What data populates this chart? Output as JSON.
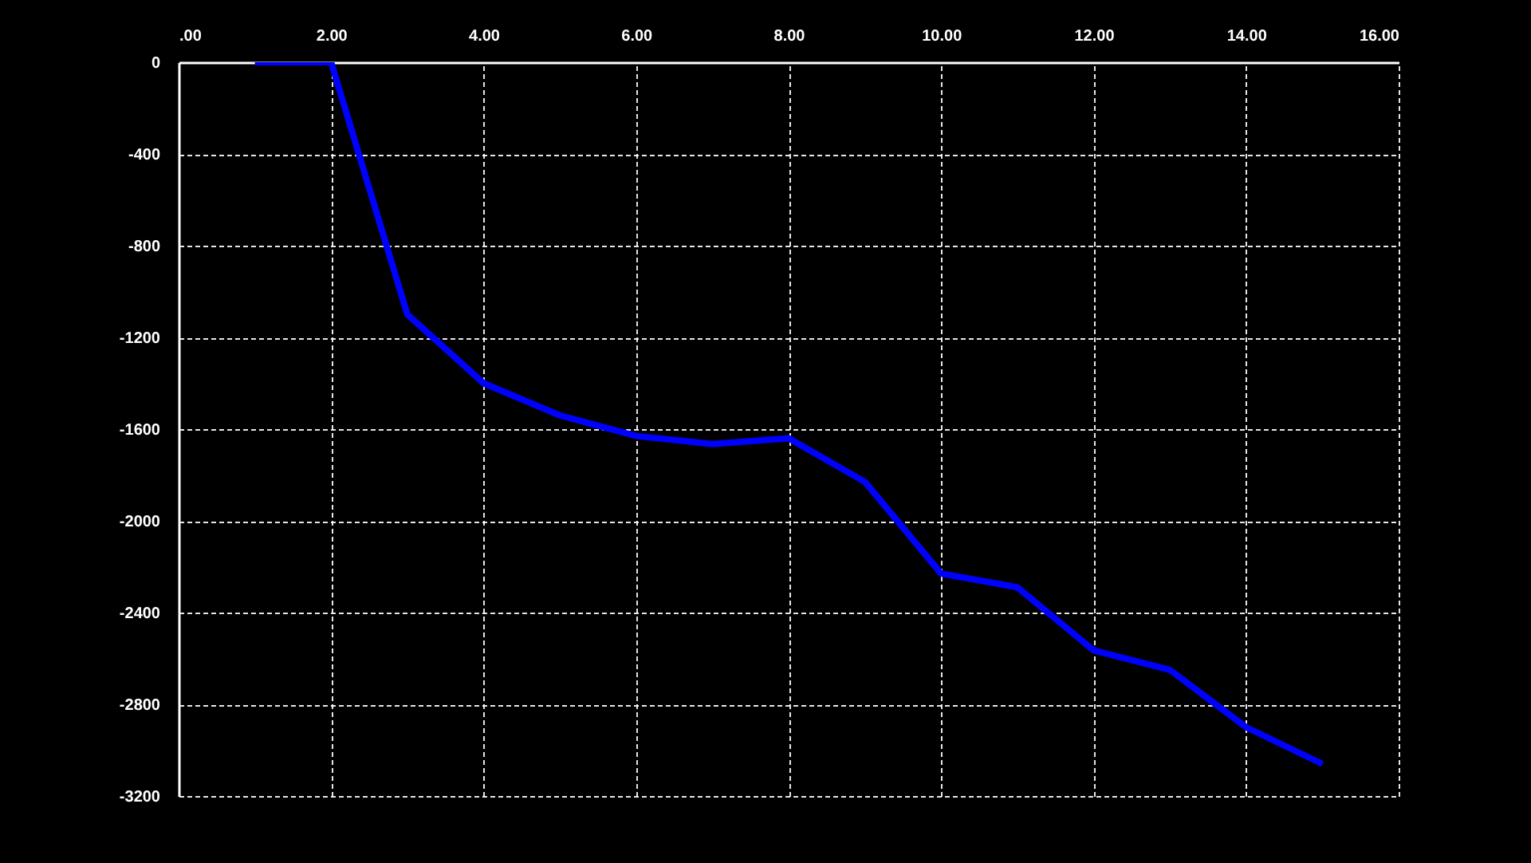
{
  "chart_data": {
    "type": "line",
    "x": [
      1,
      2,
      3,
      4,
      5,
      6,
      7,
      8,
      9,
      10,
      11,
      12,
      13,
      14,
      15
    ],
    "series": [
      {
        "color": "#0000ff",
        "values": [
          0,
          0,
          -1100,
          -1400,
          -1540,
          -1630,
          -1665,
          -1640,
          -1830,
          -2230,
          -2290,
          -2565,
          -2650,
          -2900,
          -3060
        ]
      }
    ],
    "xlim": [
      0,
      16
    ],
    "xticks": [
      {
        "value": 0,
        "label": ".00"
      },
      {
        "value": 2,
        "label": "2.00"
      },
      {
        "value": 4,
        "label": "4.00"
      },
      {
        "value": 6,
        "label": "6.00"
      },
      {
        "value": 8,
        "label": "8.00"
      },
      {
        "value": 10,
        "label": "10.00"
      },
      {
        "value": 12,
        "label": "12.00"
      },
      {
        "value": 14,
        "label": "14.00"
      },
      {
        "value": 16,
        "label": "16.00"
      }
    ],
    "ylim": [
      -3200,
      0
    ],
    "yticks": [
      0,
      -400,
      -800,
      -1200,
      -1600,
      -2000,
      -2400,
      -2800,
      -3200
    ],
    "grid": true,
    "line_style": "solid"
  }
}
